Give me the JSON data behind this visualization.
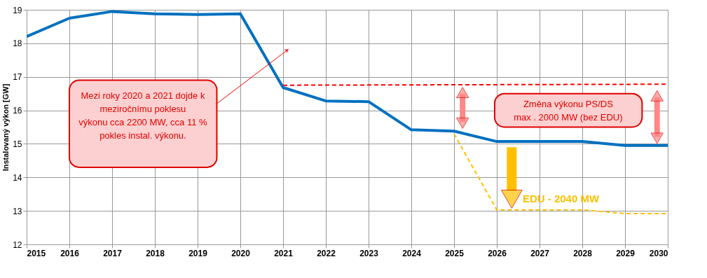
{
  "chart_data": {
    "type": "line",
    "ylabel": "Instalovaný výkon [GW]",
    "xlim": [
      2015,
      2030
    ],
    "xticks": [
      2015,
      2016,
      2017,
      2018,
      2019,
      2020,
      2021,
      2022,
      2023,
      2024,
      2025,
      2026,
      2027,
      2028,
      2029,
      2030
    ],
    "ylim": [
      12,
      19
    ],
    "yticks": [
      12,
      13,
      14,
      15,
      16,
      17,
      18,
      19
    ],
    "grid": true,
    "x": [
      2015,
      2016,
      2017,
      2018,
      2019,
      2020,
      2021,
      2022,
      2023,
      2024,
      2025,
      2026,
      2027,
      2028,
      2029,
      2030
    ],
    "series": [
      {
        "color": "#0070c0",
        "line_style": "solid",
        "values": [
          18.2,
          18.75,
          18.95,
          18.88,
          18.86,
          18.88,
          16.68,
          16.28,
          16.26,
          15.42,
          15.38,
          15.07,
          15.07,
          15.07,
          14.95,
          14.95
        ]
      },
      {
        "color": "#ff0000",
        "line_style": "dashed",
        "x": [
          2021,
          2030
        ],
        "values": [
          16.75,
          16.78
        ]
      },
      {
        "color": "#ffc000",
        "line_style": "dashed",
        "x": [
          2025,
          2026,
          2027,
          2028,
          2029,
          2030
        ],
        "values": [
          15.3,
          13.03,
          13.03,
          13.03,
          12.92,
          12.92
        ]
      }
    ],
    "annotations": [
      "Mezi roky 2020 a 2021  dojde k\nmeziročnímu poklesu\nvýkonu cca 2200 MW, cca 11 %\npokles instal. výkonu.",
      "Změna výkonu PS/DS\nmax . 2000 MW (bez EDU)",
      "EDU - 2040 MW"
    ]
  }
}
